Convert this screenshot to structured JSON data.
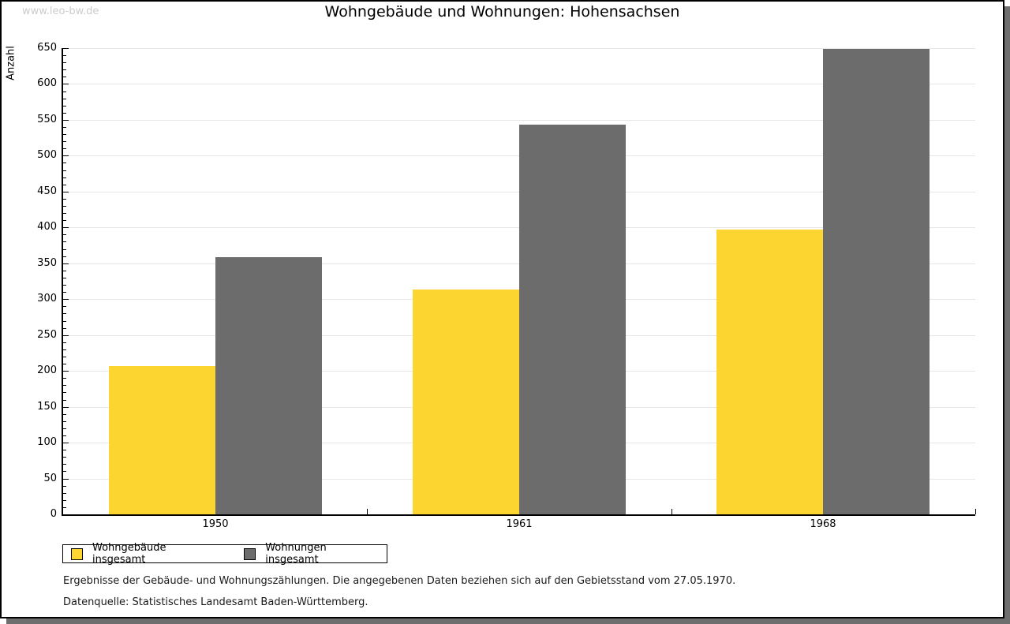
{
  "watermark": "www.leo-bw.de",
  "chart_data": {
    "type": "bar",
    "title": "Wohngebäude und Wohnungen: Hohensachsen",
    "ylabel": "Anzahl",
    "xlabel": "",
    "categories": [
      "1950",
      "1961",
      "1968"
    ],
    "series": [
      {
        "name": "Wohngebäude insgesamt",
        "color": "#fdd531",
        "values": [
          207,
          314,
          397
        ]
      },
      {
        "name": "Wohnungen insgesamt",
        "color": "#6c6c6c",
        "values": [
          358,
          543,
          649
        ]
      }
    ],
    "ylim": [
      0,
      650
    ],
    "y_major_tick_step": 50,
    "y_minor_tick_step": 10,
    "grid": "horizontal-major",
    "gridline_color": "#e6e6e6",
    "legend_position": "bottom-left"
  },
  "notes": [
    "Ergebnisse der Gebäude- und Wohnungszählungen. Die angegebenen Daten beziehen sich auf den Gebietsstand vom 27.05.1970.",
    "Datenquelle: Statistisches Landesamt Baden-Württemberg."
  ]
}
